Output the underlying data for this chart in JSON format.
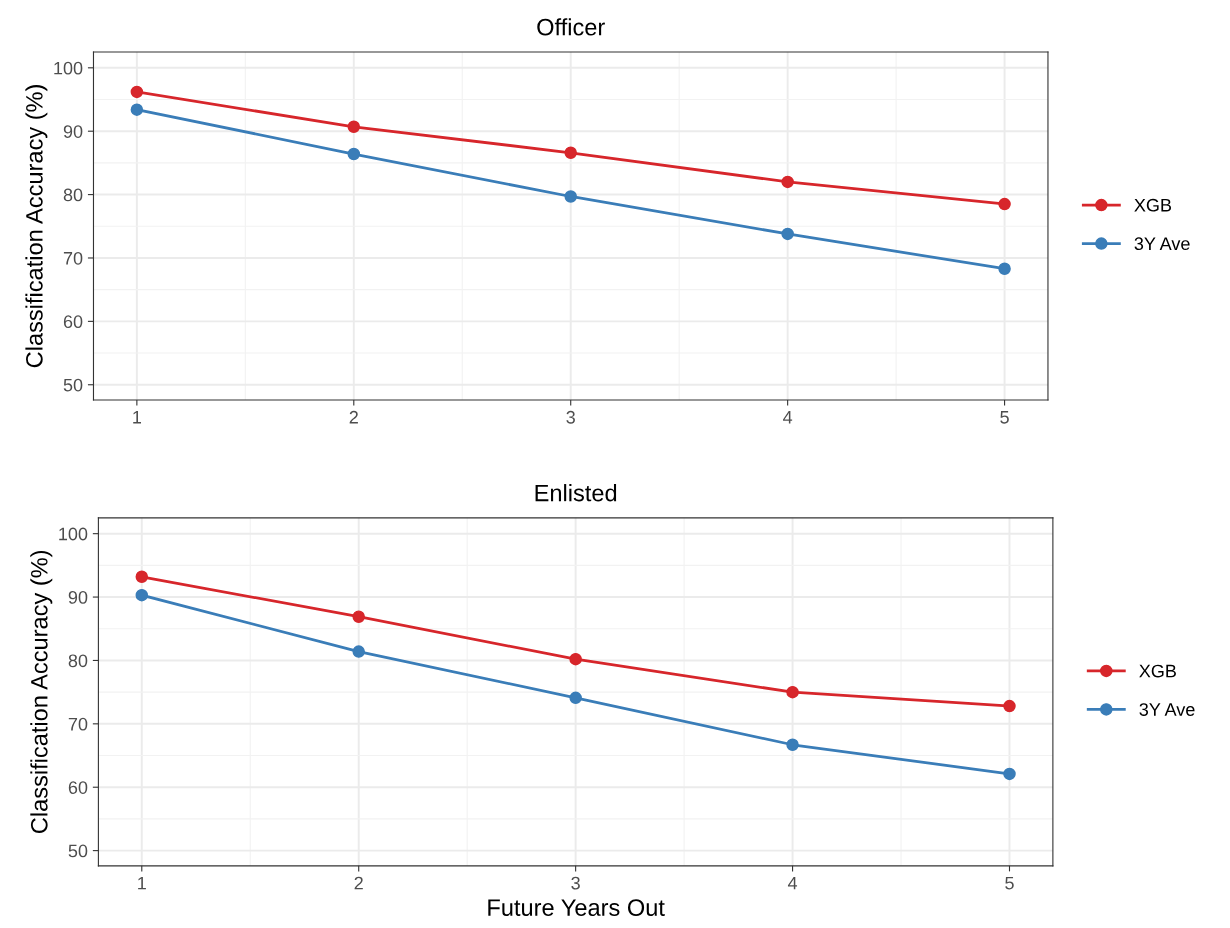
{
  "chart_data": [
    {
      "type": "line",
      "title": "Officer",
      "ylabel": "Classification Accuracy (%)",
      "x": [
        1,
        2,
        3,
        4,
        5
      ],
      "series": [
        {
          "name": "XGB",
          "color": "#d7262b",
          "values": [
            96.2,
            90.7,
            86.6,
            82.0,
            78.5
          ]
        },
        {
          "name": "3Y Ave",
          "color": "#3a7db8",
          "values": [
            93.4,
            86.4,
            79.7,
            73.8,
            68.3
          ]
        }
      ],
      "xlim": [
        0.8,
        5.2
      ],
      "xticks": [
        1,
        2,
        3,
        4,
        5
      ],
      "ylim": [
        47.6,
        102.5
      ],
      "yticks": [
        50,
        60,
        70,
        80,
        90,
        100
      ],
      "grid": true,
      "legend": "right",
      "marker": "circle",
      "line_style": "solid"
    },
    {
      "type": "line",
      "title": "Enlisted",
      "xlabel": "Future Years Out",
      "ylabel": "Classification Accuracy (%)",
      "x": [
        1,
        2,
        3,
        4,
        5
      ],
      "series": [
        {
          "name": "XGB",
          "color": "#d7262b",
          "values": [
            93.2,
            86.9,
            80.2,
            75.0,
            72.8
          ]
        },
        {
          "name": "3Y Ave",
          "color": "#3a7db8",
          "values": [
            90.3,
            81.4,
            74.1,
            66.7,
            62.1
          ]
        }
      ],
      "xlim": [
        0.8,
        5.2
      ],
      "xticks": [
        1,
        2,
        3,
        4,
        5
      ],
      "ylim": [
        47.6,
        102.5
      ],
      "yticks": [
        50,
        60,
        70,
        80,
        90,
        100
      ],
      "grid": true,
      "legend": "right",
      "marker": "circle",
      "line_style": "solid"
    }
  ]
}
